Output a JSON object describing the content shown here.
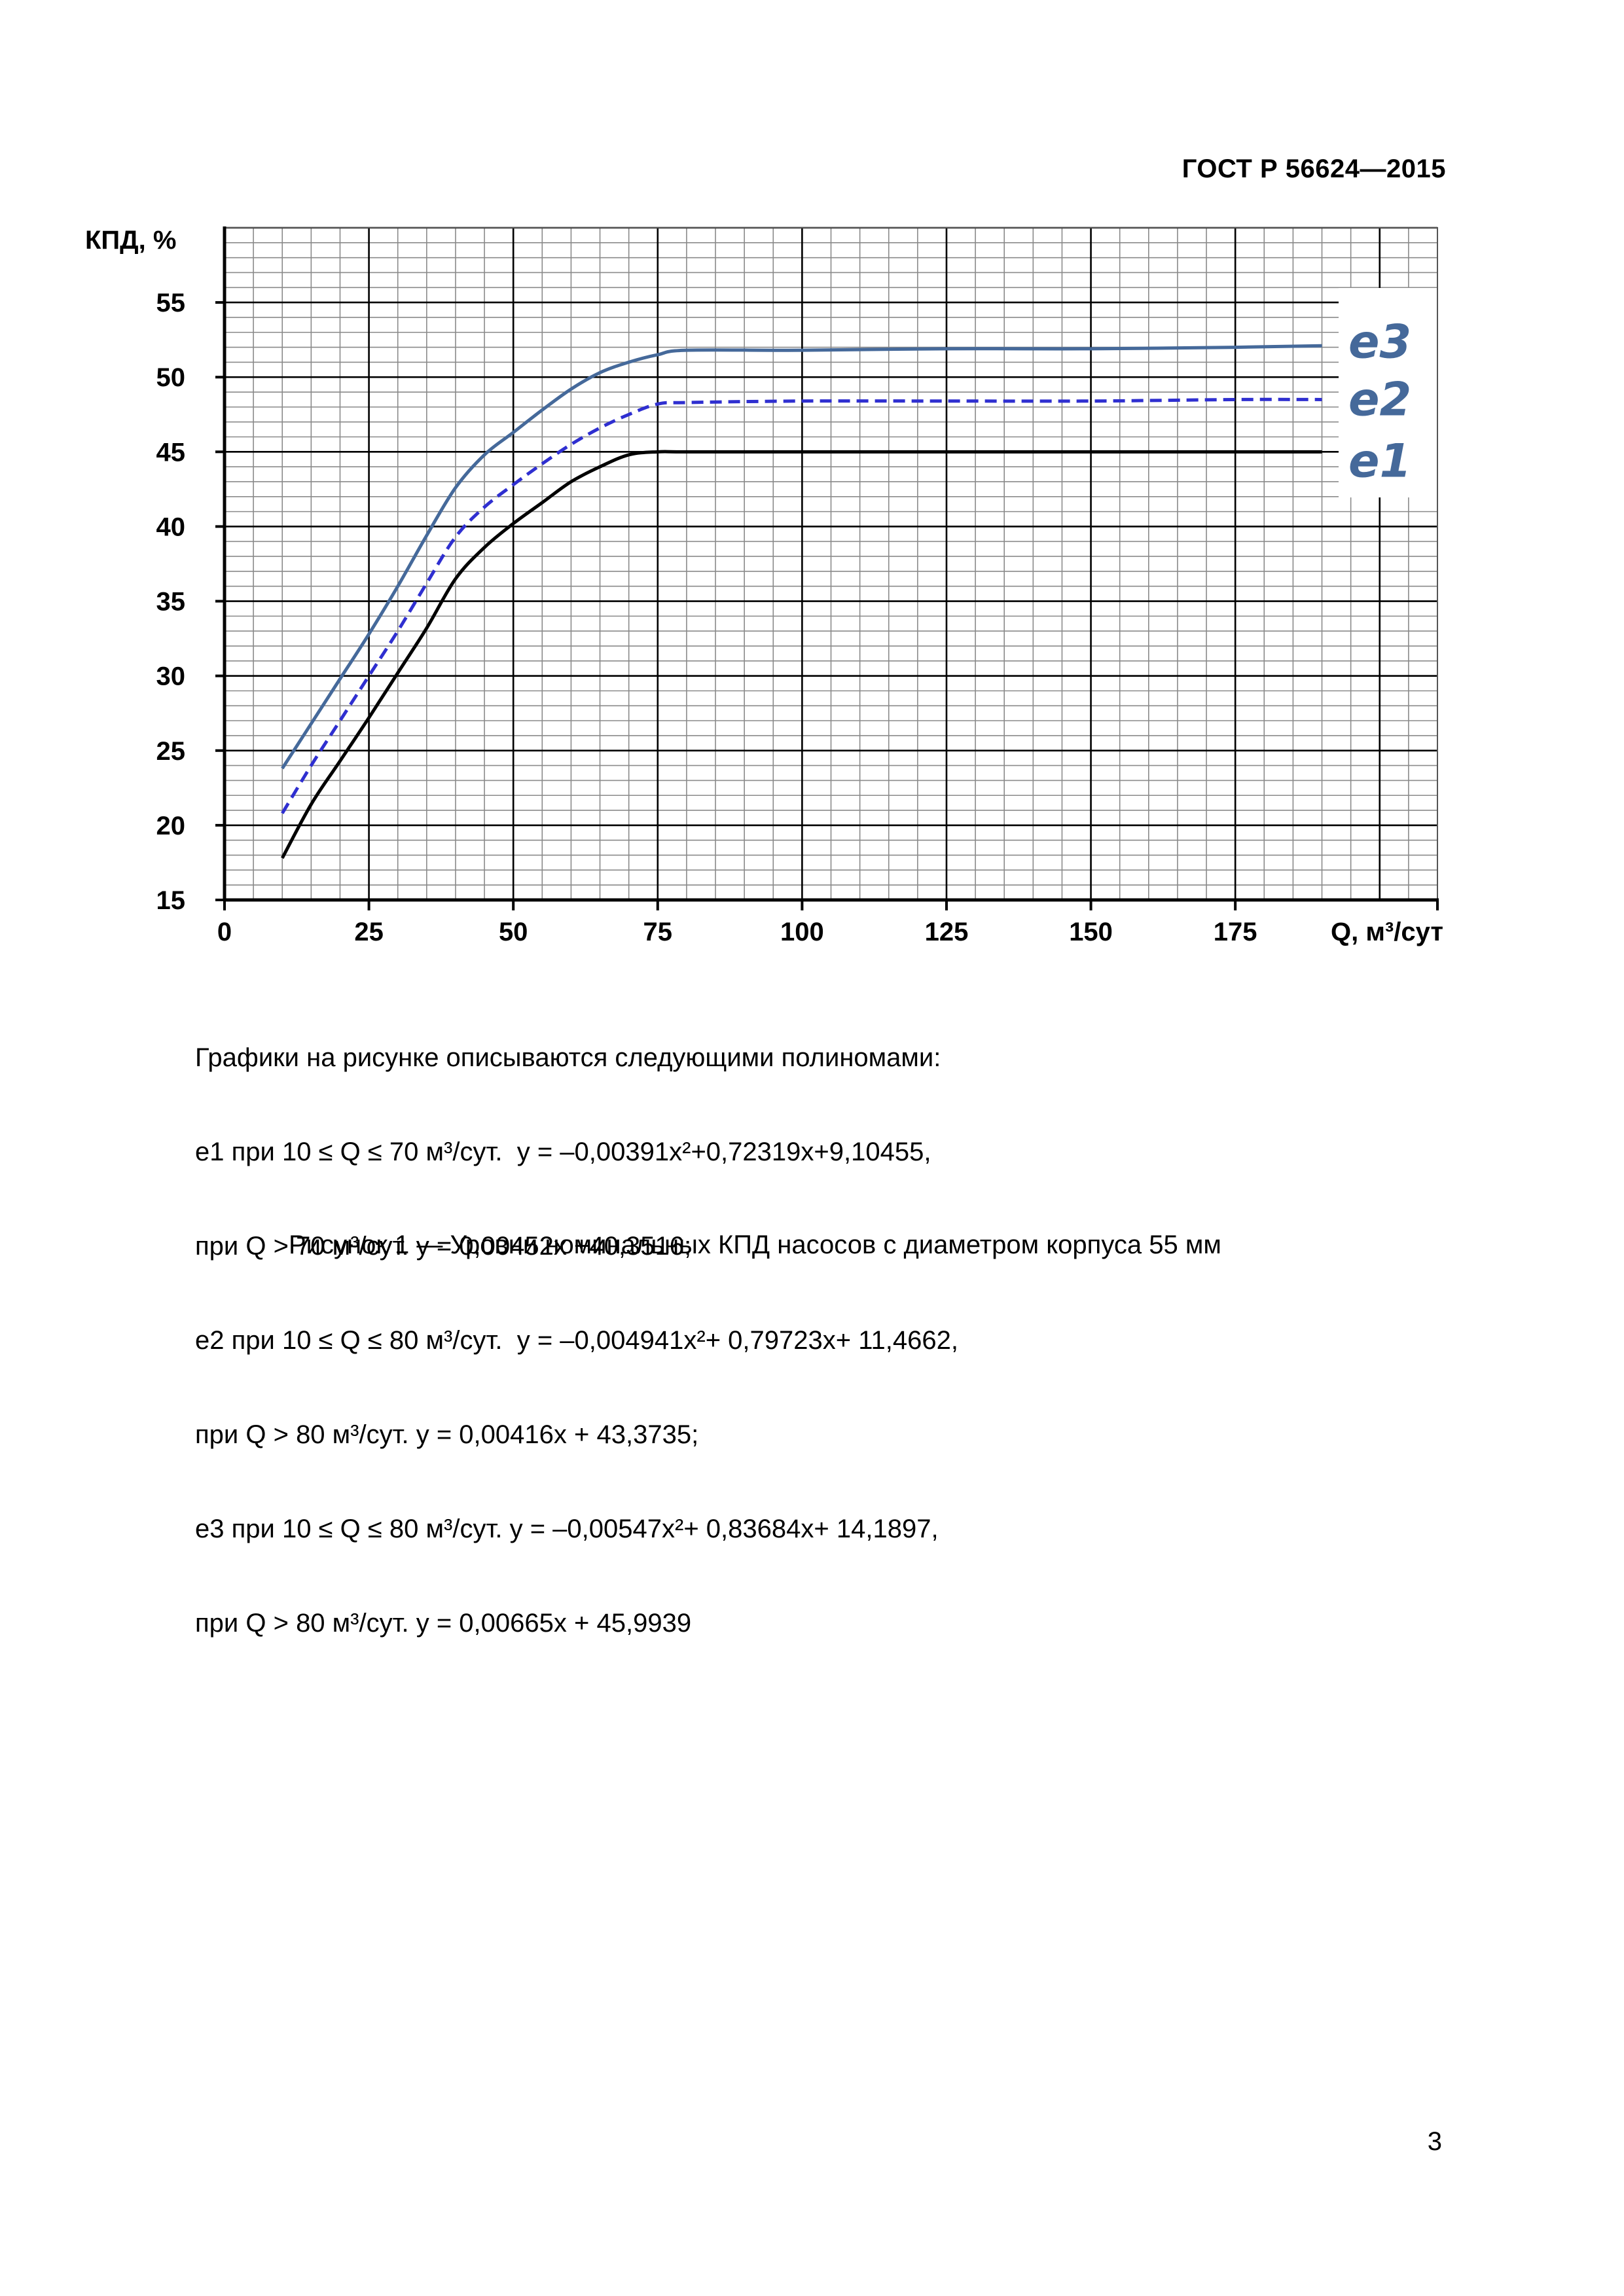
{
  "header": {
    "doc_id": "ГОСТ Р 56624—2015"
  },
  "chart_data": {
    "type": "line",
    "ylabel": "КПД, %",
    "xlabel": "Q, м³/сут",
    "xlim": [
      0,
      210
    ],
    "ylim": [
      15,
      60
    ],
    "x_ticks": [
      0,
      25,
      50,
      75,
      100,
      125,
      150,
      175
    ],
    "y_ticks": [
      15,
      20,
      25,
      30,
      35,
      40,
      45,
      50,
      55
    ],
    "x_tick_labels": [
      "0",
      "25",
      "50",
      "75",
      "100",
      "125",
      "150",
      "175"
    ],
    "y_tick_labels": [
      "15",
      "20",
      "25",
      "30",
      "35",
      "40",
      "45",
      "50",
      "55"
    ],
    "grid": true,
    "series": [
      {
        "name": "e1",
        "color": "#000000",
        "dash": "solid",
        "x": [
          10,
          15,
          20,
          25,
          30,
          35,
          40,
          45,
          50,
          55,
          60,
          65,
          70,
          75,
          80,
          100,
          125,
          150,
          175,
          190
        ],
        "y": [
          17.8,
          21.4,
          24.3,
          27.2,
          30.2,
          33.2,
          36.5,
          38.6,
          40.2,
          41.6,
          43.0,
          44.0,
          44.8,
          45.0,
          45.0,
          45.0,
          45.0,
          45.0,
          45.0,
          45.0
        ]
      },
      {
        "name": "e2",
        "color": "#2f2fd0",
        "dash": "dashed",
        "x": [
          10,
          15,
          20,
          25,
          30,
          35,
          40,
          45,
          50,
          55,
          60,
          65,
          70,
          75,
          80,
          100,
          125,
          150,
          175,
          190
        ],
        "y": [
          20.8,
          24.0,
          27.0,
          30.0,
          33.0,
          36.2,
          39.3,
          41.3,
          42.8,
          44.2,
          45.5,
          46.6,
          47.5,
          48.2,
          48.3,
          48.4,
          48.4,
          48.4,
          48.5,
          48.5
        ]
      },
      {
        "name": "e3",
        "color": "#45699a",
        "dash": "solid",
        "x": [
          10,
          15,
          20,
          25,
          30,
          35,
          40,
          45,
          50,
          55,
          60,
          65,
          70,
          75,
          80,
          100,
          125,
          150,
          175,
          190
        ],
        "y": [
          23.8,
          26.8,
          29.8,
          32.8,
          36.0,
          39.4,
          42.6,
          44.8,
          46.3,
          47.8,
          49.2,
          50.3,
          51.0,
          51.5,
          51.8,
          51.8,
          51.9,
          51.9,
          52.0,
          52.1
        ]
      }
    ],
    "series_labels": [
      "e3",
      "e2",
      "e1"
    ]
  },
  "notes": {
    "lines": [
      "Графики на рисунке описываются следующими полиномами:",
      "e1 при 10 ≤ Q ≤ 70 м³/сут.  y = –0,00391x²+0,72319x+9,10455,",
      "при Q > 70 м³/сут. y = 0,00452x +40,3516;",
      "e2 при 10 ≤ Q ≤ 80 м³/сут.  y = –0,004941x²+ 0,79723x+ 11,4662,",
      "при Q > 80 м³/сут. y = 0,00416x + 43,3735;",
      "e3 при 10 ≤ Q ≤ 80 м³/сут. y = –0,00547x²+ 0,83684x+ 14,1897,",
      "при Q > 80 м³/сут. y = 0,00665x + 45,9939"
    ]
  },
  "caption": "Рисунок 1 — Уровни номинальных КПД насосов с диаметром корпуса 55 мм",
  "page_number": "3"
}
